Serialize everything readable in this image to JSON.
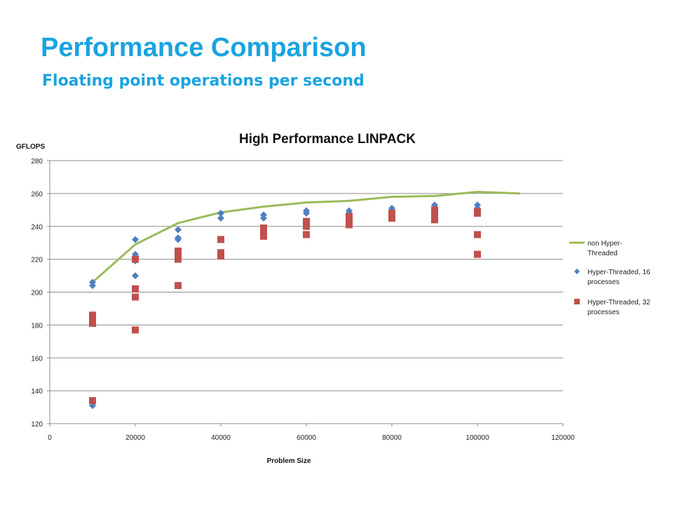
{
  "slide": {
    "title": "Performance Comparison",
    "subtitle": "Floating point operations per second"
  },
  "chart_data": {
    "type": "scatter",
    "title": "High Performance LINPACK",
    "xlabel": "Problem Size",
    "ylabel": "GFLOPS",
    "xlim": [
      0,
      120000
    ],
    "ylim": [
      120,
      280
    ],
    "xticks": [
      0,
      20000,
      40000,
      60000,
      80000,
      100000,
      120000
    ],
    "yticks": [
      120,
      140,
      160,
      180,
      200,
      220,
      240,
      260,
      280
    ],
    "grid": "horizontal",
    "legend_position": "right",
    "series": [
      {
        "name": "non Hyper-Threaded",
        "kind": "line",
        "color": "#9bbb59",
        "points": [
          [
            10000,
            206
          ],
          [
            20000,
            229
          ],
          [
            30000,
            242
          ],
          [
            40000,
            248.5
          ],
          [
            50000,
            252
          ],
          [
            60000,
            254.5
          ],
          [
            70000,
            255.5
          ],
          [
            80000,
            258
          ],
          [
            90000,
            258.5
          ],
          [
            100000,
            261
          ],
          [
            110000,
            260
          ]
        ]
      },
      {
        "name": "Hyper-Threaded, 16 processes",
        "kind": "diamond",
        "color": "#4f81bd",
        "points": [
          [
            10000,
            206
          ],
          [
            10000,
            204
          ],
          [
            10000,
            131
          ],
          [
            20000,
            232
          ],
          [
            20000,
            223
          ],
          [
            20000,
            219
          ],
          [
            20000,
            210
          ],
          [
            30000,
            238
          ],
          [
            30000,
            233
          ],
          [
            30000,
            232
          ],
          [
            40000,
            248
          ],
          [
            40000,
            245
          ],
          [
            50000,
            247
          ],
          [
            50000,
            245
          ],
          [
            60000,
            249.5
          ],
          [
            60000,
            248
          ],
          [
            70000,
            249.5
          ],
          [
            70000,
            248
          ],
          [
            80000,
            251
          ],
          [
            80000,
            249
          ],
          [
            90000,
            253
          ],
          [
            90000,
            250
          ],
          [
            100000,
            253
          ],
          [
            100000,
            251
          ]
        ]
      },
      {
        "name": "Hyper-Threaded, 32 processes",
        "kind": "square",
        "color": "#c0504d",
        "points": [
          [
            10000,
            186
          ],
          [
            10000,
            183
          ],
          [
            10000,
            181
          ],
          [
            10000,
            134
          ],
          [
            20000,
            220
          ],
          [
            20000,
            202
          ],
          [
            20000,
            197
          ],
          [
            20000,
            177
          ],
          [
            30000,
            225
          ],
          [
            30000,
            222
          ],
          [
            30000,
            220
          ],
          [
            30000,
            204
          ],
          [
            40000,
            232
          ],
          [
            40000,
            224
          ],
          [
            40000,
            222
          ],
          [
            50000,
            239
          ],
          [
            50000,
            236
          ],
          [
            50000,
            234
          ],
          [
            60000,
            243
          ],
          [
            60000,
            240
          ],
          [
            60000,
            235
          ],
          [
            70000,
            246
          ],
          [
            70000,
            243
          ],
          [
            70000,
            241
          ],
          [
            80000,
            248
          ],
          [
            80000,
            247
          ],
          [
            80000,
            245
          ],
          [
            90000,
            250
          ],
          [
            90000,
            248
          ],
          [
            90000,
            244
          ],
          [
            100000,
            249
          ],
          [
            100000,
            248
          ],
          [
            100000,
            235
          ],
          [
            100000,
            223
          ]
        ]
      }
    ]
  }
}
